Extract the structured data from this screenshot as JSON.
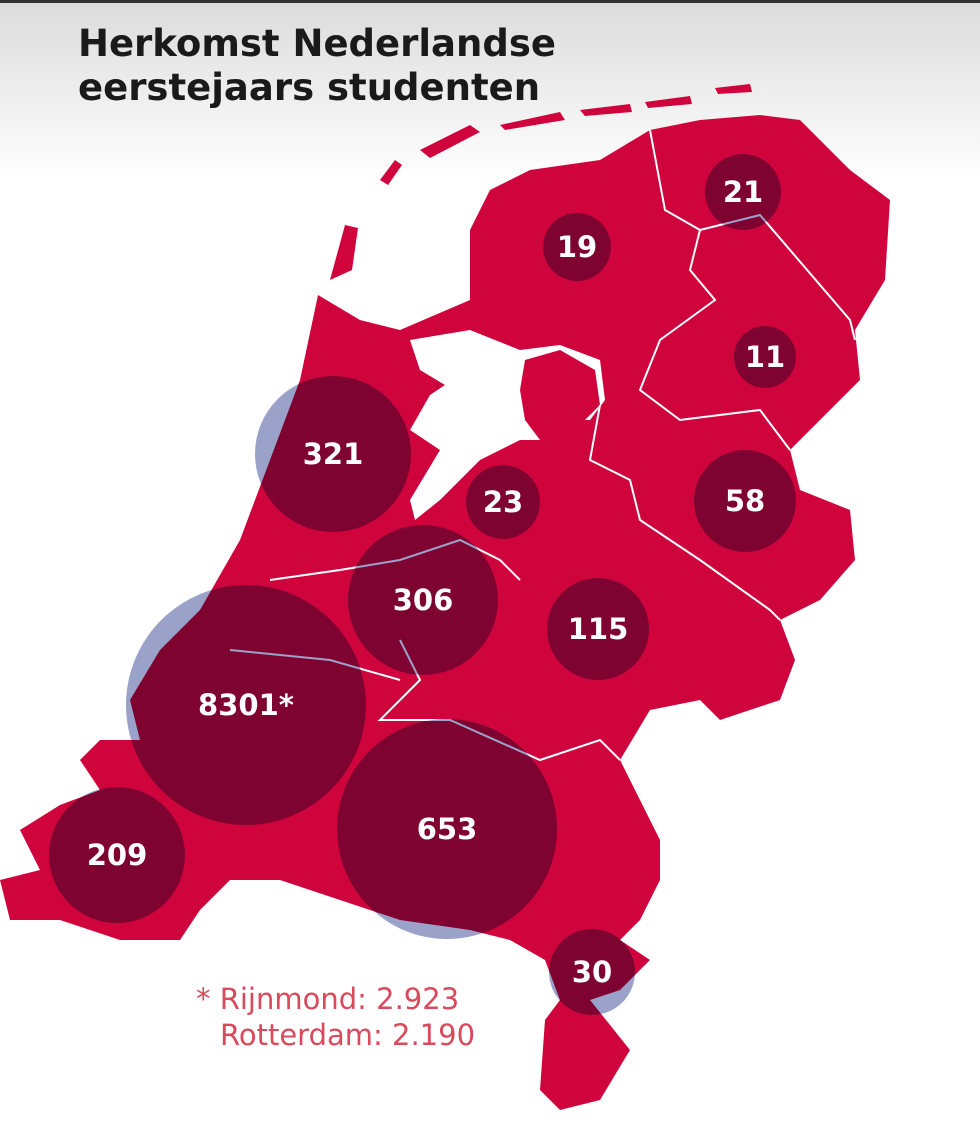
{
  "title": "Herkomst Nederlandse eerstejaars studenten",
  "bubbles": [
    {
      "value": 21
    },
    {
      "value": 19
    },
    {
      "value": 11
    },
    {
      "value": 321
    },
    {
      "value": 23
    },
    {
      "value": 58
    },
    {
      "value": 306
    },
    {
      "value": 115
    },
    {
      "value": 8301,
      "label": "8301*"
    },
    {
      "value": 653
    },
    {
      "value": 209
    },
    {
      "value": 30
    }
  ],
  "footnote": [
    "* Rijnmond: 2.923",
    "Rotterdam: 2.190"
  ]
}
